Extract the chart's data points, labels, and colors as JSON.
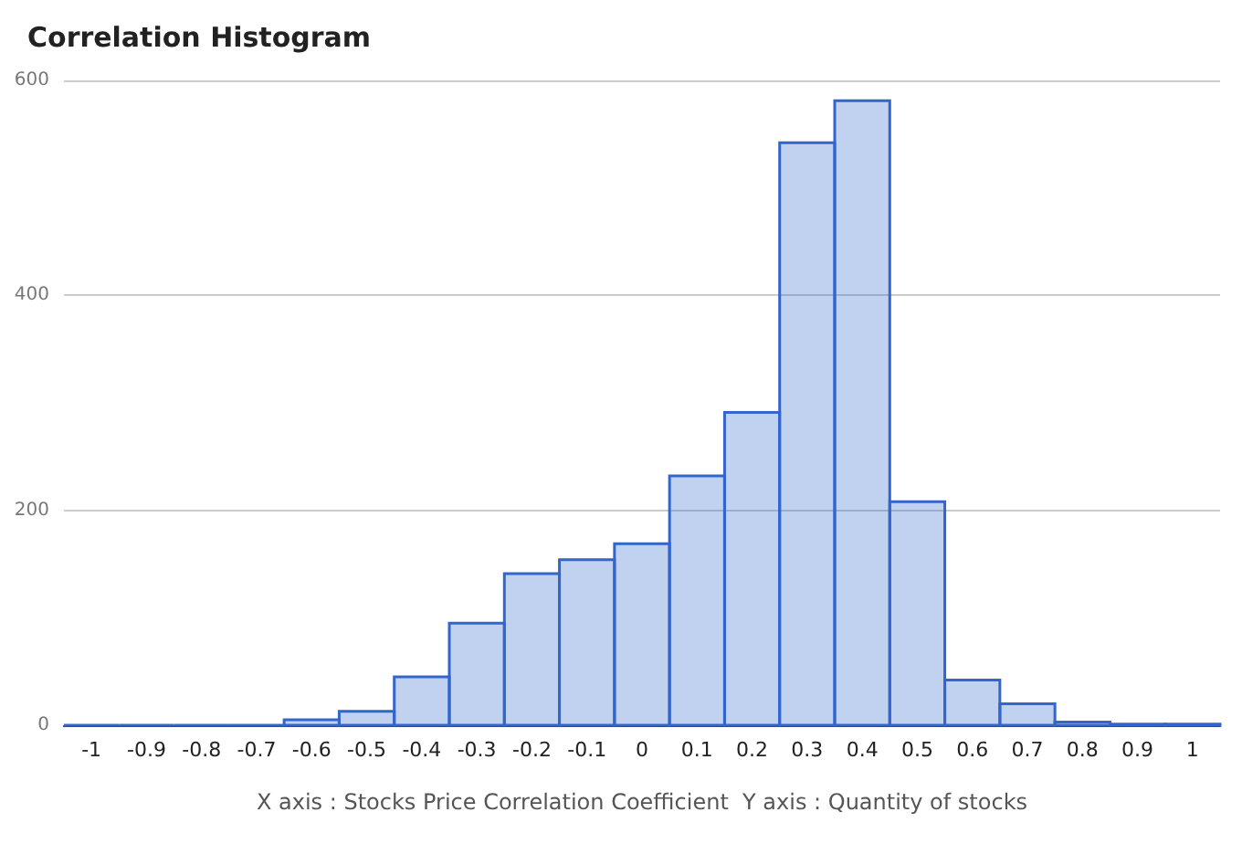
{
  "chart_data": {
    "type": "histogram",
    "title": "Correlation Histogram",
    "xlabel": "X axis : Stocks Price Correlation Coefficient  Y axis : Quantity of stocks",
    "bins": [
      -1.05,
      -0.95,
      -0.85,
      -0.75,
      -0.65,
      -0.55,
      -0.45,
      -0.35,
      -0.25,
      -0.15,
      -0.05,
      0.05,
      0.15,
      0.25,
      0.35,
      0.45,
      0.55,
      0.65,
      0.75,
      0.85,
      0.95,
      1.05
    ],
    "values": [
      0,
      0,
      0,
      0,
      5,
      13,
      45,
      95,
      141,
      154,
      169,
      232,
      291,
      542,
      581,
      208,
      42,
      20,
      3,
      1,
      1
    ],
    "color": "#3366cc",
    "xlim": [
      -1.05,
      1.05
    ],
    "xticks": [
      -1,
      -0.9,
      -0.8,
      -0.7,
      -0.6,
      -0.5,
      -0.4,
      -0.3,
      -0.2,
      -0.1,
      0,
      0.1,
      0.2,
      0.3,
      0.4,
      0.5,
      0.6,
      0.7,
      0.8,
      0.9,
      1
    ],
    "ylim": [
      0,
      600
    ],
    "yticks": [
      0,
      200,
      400,
      600
    ],
    "grid": "y"
  }
}
